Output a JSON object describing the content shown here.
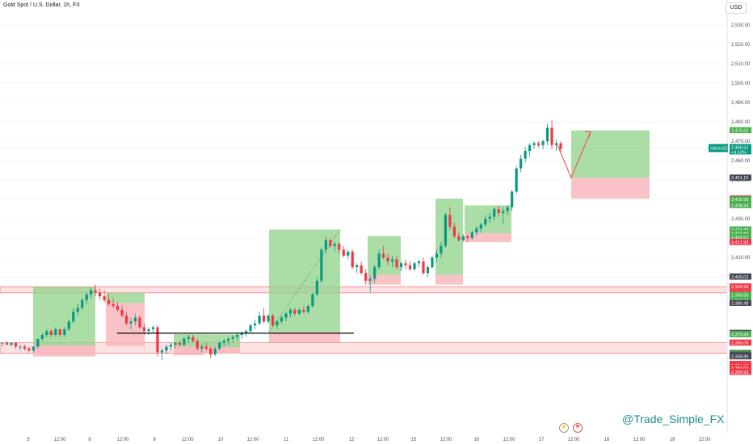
{
  "header": {
    "title": "Gold Spot / U.S. Dollar, 1h, FX",
    "currency": "USD"
  },
  "watermark": "@Trade_Simple_FX",
  "colors": {
    "up": "#089981",
    "down": "#f23645",
    "profit_zone": "#8fd18a",
    "loss_zone": "#f7b3b8",
    "sr_band": "#fde2e4",
    "arrow": "#f05a5a"
  },
  "icons": {
    "bolt": "lightning-icon",
    "calendar": "calendar-flag-icon"
  },
  "chart_data": {
    "type": "candlestick",
    "symbol": "XAUUSD",
    "last_price": {
      "symbol": "XAUUSD",
      "value": "2,466.51",
      "change": "+4.62%"
    },
    "y_ticks": [
      2530,
      2520,
      2510,
      2500,
      2490,
      2480,
      2470,
      2460,
      2450,
      2440,
      2430,
      2420,
      2410,
      2400
    ],
    "y_tick_labels": [
      "2,530.00",
      "2,520.00",
      "2,510.00",
      "2,500.00",
      "2,490.00",
      "2,480.00",
      "2,470.00",
      "2,460.00",
      "2,450.00",
      "2,440.00",
      "2,430.00",
      "2,420.00",
      "2,410.00",
      "2,400.00"
    ],
    "x_ticks": [
      {
        "label": "5",
        "x": 35
      },
      {
        "label": "12:00",
        "x": 74
      },
      {
        "label": "8",
        "x": 111
      },
      {
        "label": "12:00",
        "x": 152
      },
      {
        "label": "9",
        "x": 191
      },
      {
        "label": "12:00",
        "x": 232
      },
      {
        "label": "10",
        "x": 273
      },
      {
        "label": "12:00",
        "x": 313
      },
      {
        "label": "11",
        "x": 354
      },
      {
        "label": "12:00",
        "x": 394
      },
      {
        "label": "12",
        "x": 435
      },
      {
        "label": "12:00",
        "x": 474
      },
      {
        "label": "15",
        "x": 512
      },
      {
        "label": "12:00",
        "x": 552
      },
      {
        "label": "16",
        "x": 590
      },
      {
        "label": "12:00",
        "x": 630
      },
      {
        "label": "17",
        "x": 670
      },
      {
        "label": "12:00",
        "x": 710
      },
      {
        "label": "18",
        "x": 751
      },
      {
        "label": "12:00",
        "x": 791
      },
      {
        "label": "19",
        "x": 832
      },
      {
        "label": "12:00",
        "x": 872
      }
    ],
    "price_labels": [
      {
        "value": 2475.62,
        "text": "2,475.62",
        "color": "#4caf50"
      },
      {
        "value": 2451.15,
        "text": "2,451.15",
        "color": "#434651"
      },
      {
        "value": 2440.38,
        "text": "2,440.38",
        "color": "#f23645"
      },
      {
        "value": 2439.95,
        "text": "2,439.95",
        "color": "#4caf50"
      },
      {
        "value": 2436.94,
        "text": "2,436.94",
        "color": "#4caf50"
      },
      {
        "value": 2424.39,
        "text": "2,424.39",
        "color": "#4caf50"
      },
      {
        "value": 2422.5,
        "text": "2,422.50",
        "color": "#4caf50"
      },
      {
        "value": 2420.51,
        "text": "2,420.51",
        "color": "#4caf50"
      },
      {
        "value": 2417.93,
        "text": "2,417.93",
        "color": "#f23645"
      },
      {
        "value": 2400.13,
        "text": "2,400.13",
        "color": "#434651"
      },
      {
        "value": 2400.02,
        "text": "2,400.02",
        "color": "#434651"
      },
      {
        "value": 2394.94,
        "text": "2,394.94",
        "color": "#f23645"
      },
      {
        "value": 2394.9,
        "text": "2,394.90",
        "color": "#f23645"
      },
      {
        "value": 2391.74,
        "text": "2,391.74",
        "color": "#f23645"
      },
      {
        "value": 2390.58,
        "text": "2,390.58",
        "color": "#4caf50"
      },
      {
        "value": 2387.98,
        "text": "2,387.98",
        "color": "#4caf50"
      },
      {
        "value": 2386.48,
        "text": "2,386.48",
        "color": "#434651"
      },
      {
        "value": 2371.0,
        "text": "2,371.00",
        "color": "#434651"
      },
      {
        "value": 2370.43,
        "text": "2,370.43",
        "color": "#4caf50"
      },
      {
        "value": 2370.34,
        "text": "2,370.34",
        "color": "#4caf50"
      },
      {
        "value": 2366.0,
        "text": "2,366.00",
        "color": "#f23645"
      },
      {
        "value": 2360.66,
        "text": "2,360.66",
        "color": "#4caf50"
      },
      {
        "value": 2360.59,
        "text": "2,360.59",
        "color": "#4caf50"
      },
      {
        "value": 2360.21,
        "text": "2,360.21",
        "color": "#434651"
      },
      {
        "value": 2359.88,
        "text": "2,359.88",
        "color": "#4caf50"
      },
      {
        "value": 2359.49,
        "text": "2,359.49",
        "color": "#434651"
      },
      {
        "value": 2359.44,
        "text": "2,359.44",
        "color": "#434651"
      },
      {
        "value": 2358.89,
        "text": "2,358.89",
        "color": "#434651"
      },
      {
        "value": 2354.97,
        "text": "2,354.97",
        "color": "#f23645"
      },
      {
        "value": 2354.09,
        "text": "2,354.09",
        "color": "#f23645"
      },
      {
        "value": 2353.02,
        "text": "2,353.02",
        "color": "#f23645"
      },
      {
        "value": 2350.93,
        "text": "2,350.93",
        "color": "#f23645"
      }
    ],
    "candles": [
      [
        2366,
        2366,
        2364,
        2366
      ],
      [
        2366,
        2367,
        2365,
        2365
      ],
      [
        2365,
        2366,
        2364,
        2366
      ],
      [
        2366,
        2366,
        2363,
        2364
      ],
      [
        2364,
        2365,
        2362,
        2364
      ],
      [
        2364,
        2365,
        2362,
        2363
      ],
      [
        2363,
        2364,
        2361,
        2362
      ],
      [
        2362,
        2364,
        2361,
        2364
      ],
      [
        2364,
        2368,
        2363,
        2368
      ],
      [
        2368,
        2371,
        2367,
        2370
      ],
      [
        2370,
        2373,
        2369,
        2372
      ],
      [
        2372,
        2373,
        2369,
        2370
      ],
      [
        2370,
        2374,
        2369,
        2373
      ],
      [
        2373,
        2373,
        2369,
        2370
      ],
      [
        2370,
        2374,
        2369,
        2373
      ],
      [
        2373,
        2378,
        2372,
        2377
      ],
      [
        2377,
        2384,
        2376,
        2382
      ],
      [
        2382,
        2386,
        2380,
        2384
      ],
      [
        2384,
        2389,
        2383,
        2388
      ],
      [
        2388,
        2392,
        2386,
        2391
      ],
      [
        2391,
        2394,
        2389,
        2393
      ],
      [
        2393,
        2396,
        2390,
        2392
      ],
      [
        2392,
        2394,
        2388,
        2390
      ],
      [
        2390,
        2393,
        2387,
        2388
      ],
      [
        2388,
        2391,
        2385,
        2386
      ],
      [
        2386,
        2389,
        2384,
        2385
      ],
      [
        2385,
        2387,
        2382,
        2383
      ],
      [
        2383,
        2385,
        2379,
        2380
      ],
      [
        2380,
        2382,
        2375,
        2376
      ],
      [
        2376,
        2379,
        2373,
        2377
      ],
      [
        2377,
        2381,
        2375,
        2379
      ],
      [
        2379,
        2380,
        2373,
        2374
      ],
      [
        2374,
        2376,
        2370,
        2372
      ],
      [
        2372,
        2374,
        2370,
        2373
      ],
      [
        2373,
        2375,
        2371,
        2374
      ],
      [
        2374,
        2375,
        2359,
        2361
      ],
      [
        2361,
        2363,
        2357,
        2362
      ],
      [
        2362,
        2365,
        2360,
        2364
      ],
      [
        2364,
        2366,
        2362,
        2365
      ],
      [
        2365,
        2366,
        2363,
        2366
      ],
      [
        2366,
        2367,
        2364,
        2365
      ],
      [
        2365,
        2369,
        2364,
        2368
      ],
      [
        2368,
        2370,
        2366,
        2369
      ],
      [
        2369,
        2370,
        2366,
        2367
      ],
      [
        2367,
        2368,
        2362,
        2363
      ],
      [
        2363,
        2365,
        2361,
        2364
      ],
      [
        2364,
        2366,
        2362,
        2363
      ],
      [
        2363,
        2364,
        2358,
        2360
      ],
      [
        2360,
        2364,
        2359,
        2363
      ],
      [
        2363,
        2367,
        2362,
        2366
      ],
      [
        2366,
        2368,
        2364,
        2367
      ],
      [
        2367,
        2369,
        2365,
        2368
      ],
      [
        2368,
        2370,
        2366,
        2369
      ],
      [
        2369,
        2371,
        2367,
        2370
      ],
      [
        2370,
        2372,
        2368,
        2371
      ],
      [
        2371,
        2373,
        2369,
        2372
      ],
      [
        2372,
        2376,
        2371,
        2375
      ],
      [
        2375,
        2378,
        2373,
        2376
      ],
      [
        2376,
        2382,
        2375,
        2380
      ],
      [
        2380,
        2384,
        2376,
        2377
      ],
      [
        2377,
        2381,
        2376,
        2380
      ],
      [
        2380,
        2381,
        2374,
        2375
      ],
      [
        2375,
        2378,
        2373,
        2377
      ],
      [
        2377,
        2380,
        2376,
        2379
      ],
      [
        2379,
        2382,
        2377,
        2381
      ],
      [
        2381,
        2384,
        2379,
        2383
      ],
      [
        2383,
        2384,
        2380,
        2381
      ],
      [
        2381,
        2384,
        2380,
        2383
      ],
      [
        2383,
        2385,
        2381,
        2382
      ],
      [
        2382,
        2386,
        2381,
        2385
      ],
      [
        2385,
        2392,
        2384,
        2391
      ],
      [
        2391,
        2400,
        2390,
        2398
      ],
      [
        2398,
        2415,
        2397,
        2414
      ],
      [
        2414,
        2421,
        2412,
        2419
      ],
      [
        2419,
        2420,
        2415,
        2416
      ],
      [
        2416,
        2418,
        2413,
        2417
      ],
      [
        2417,
        2418,
        2412,
        2414
      ],
      [
        2414,
        2416,
        2410,
        2411
      ],
      [
        2411,
        2414,
        2409,
        2413
      ],
      [
        2413,
        2414,
        2404,
        2405
      ],
      [
        2405,
        2407,
        2402,
        2406
      ],
      [
        2406,
        2408,
        2401,
        2402
      ],
      [
        2402,
        2404,
        2396,
        2398
      ],
      [
        2398,
        2401,
        2392,
        2399
      ],
      [
        2399,
        2406,
        2397,
        2405
      ],
      [
        2405,
        2414,
        2404,
        2412
      ],
      [
        2412,
        2416,
        2409,
        2410
      ],
      [
        2410,
        2412,
        2406,
        2408
      ],
      [
        2408,
        2411,
        2405,
        2409
      ],
      [
        2409,
        2411,
        2404,
        2405
      ],
      [
        2405,
        2408,
        2403,
        2407
      ],
      [
        2407,
        2409,
        2404,
        2406
      ],
      [
        2406,
        2408,
        2403,
        2404
      ],
      [
        2404,
        2408,
        2403,
        2407
      ],
      [
        2407,
        2409,
        2405,
        2408
      ],
      [
        2408,
        2410,
        2401,
        2402
      ],
      [
        2402,
        2406,
        2400,
        2405
      ],
      [
        2405,
        2411,
        2404,
        2410
      ],
      [
        2410,
        2414,
        2408,
        2412
      ],
      [
        2412,
        2418,
        2410,
        2416
      ],
      [
        2416,
        2433,
        2415,
        2432
      ],
      [
        2432,
        2436,
        2424,
        2426
      ],
      [
        2426,
        2428,
        2420,
        2421
      ],
      [
        2421,
        2423,
        2418,
        2419
      ],
      [
        2419,
        2422,
        2418,
        2421
      ],
      [
        2421,
        2422,
        2418,
        2420
      ],
      [
        2420,
        2424,
        2419,
        2423
      ],
      [
        2423,
        2426,
        2421,
        2425
      ],
      [
        2425,
        2428,
        2423,
        2427
      ],
      [
        2427,
        2432,
        2426,
        2430
      ],
      [
        2430,
        2433,
        2428,
        2431
      ],
      [
        2431,
        2436,
        2429,
        2435
      ],
      [
        2435,
        2437,
        2431,
        2433
      ],
      [
        2433,
        2436,
        2427,
        2434
      ],
      [
        2434,
        2437,
        2432,
        2436
      ],
      [
        2436,
        2445,
        2434,
        2444
      ],
      [
        2444,
        2457,
        2443,
        2456
      ],
      [
        2456,
        2463,
        2454,
        2461
      ],
      [
        2461,
        2467,
        2459,
        2465
      ],
      [
        2465,
        2469,
        2462,
        2468
      ],
      [
        2468,
        2470,
        2466,
        2469
      ],
      [
        2469,
        2470,
        2467,
        2468
      ],
      [
        2468,
        2471,
        2466,
        2470
      ],
      [
        2470,
        2479,
        2468,
        2477
      ],
      [
        2477,
        2481,
        2466,
        2468
      ],
      [
        2468,
        2471,
        2465,
        2469
      ],
      [
        2469,
        2470,
        2464,
        2466
      ]
    ],
    "overlays": {
      "support_bands": [
        [
          2391.74,
          2394.94
        ],
        [
          2360.66,
          2366.0
        ]
      ],
      "hline": {
        "value": 2371.0,
        "x1": 145,
        "x2": 438
      },
      "zones": [
        {
          "x1": 41,
          "x2": 118,
          "top": 2394.9,
          "mid": 2364.5,
          "bot": 2358.9,
          "arrow": false
        },
        {
          "x1": 131,
          "x2": 179,
          "top": 2391.7,
          "mid": 2386.5,
          "bot": 2364.3,
          "arrow": false
        },
        {
          "x1": 215,
          "x2": 253,
          "top": 2370.4,
          "mid": 2364.0,
          "bot": 2359.5,
          "arrow": false
        },
        {
          "x1": 253,
          "x2": 297,
          "top": 2370.3,
          "mid": 2363.6,
          "bot": 2360.6,
          "arrow": false
        },
        {
          "x1": 333,
          "x2": 421,
          "top": 2424.4,
          "mid": 2371.6,
          "bot": 2366.3,
          "arrow": true
        },
        {
          "x1": 455,
          "x2": 496,
          "top": 2421.1,
          "mid": 2401.0,
          "bot": 2396.0,
          "arrow": false
        },
        {
          "x1": 539,
          "x2": 573,
          "top": 2440.4,
          "mid": 2401.0,
          "bot": 2396.0,
          "arrow": false
        },
        {
          "x1": 575,
          "x2": 633,
          "top": 2436.9,
          "mid": 2422.5,
          "bot": 2417.9,
          "arrow": false
        },
        {
          "x1": 707,
          "x2": 804,
          "top": 2475.6,
          "mid": 2451.2,
          "bot": 2440.4,
          "arrow": false
        }
      ],
      "trade_arrow": [
        [
          707,
          2451.2
        ],
        [
          731,
          2475.0
        ]
      ]
    }
  }
}
